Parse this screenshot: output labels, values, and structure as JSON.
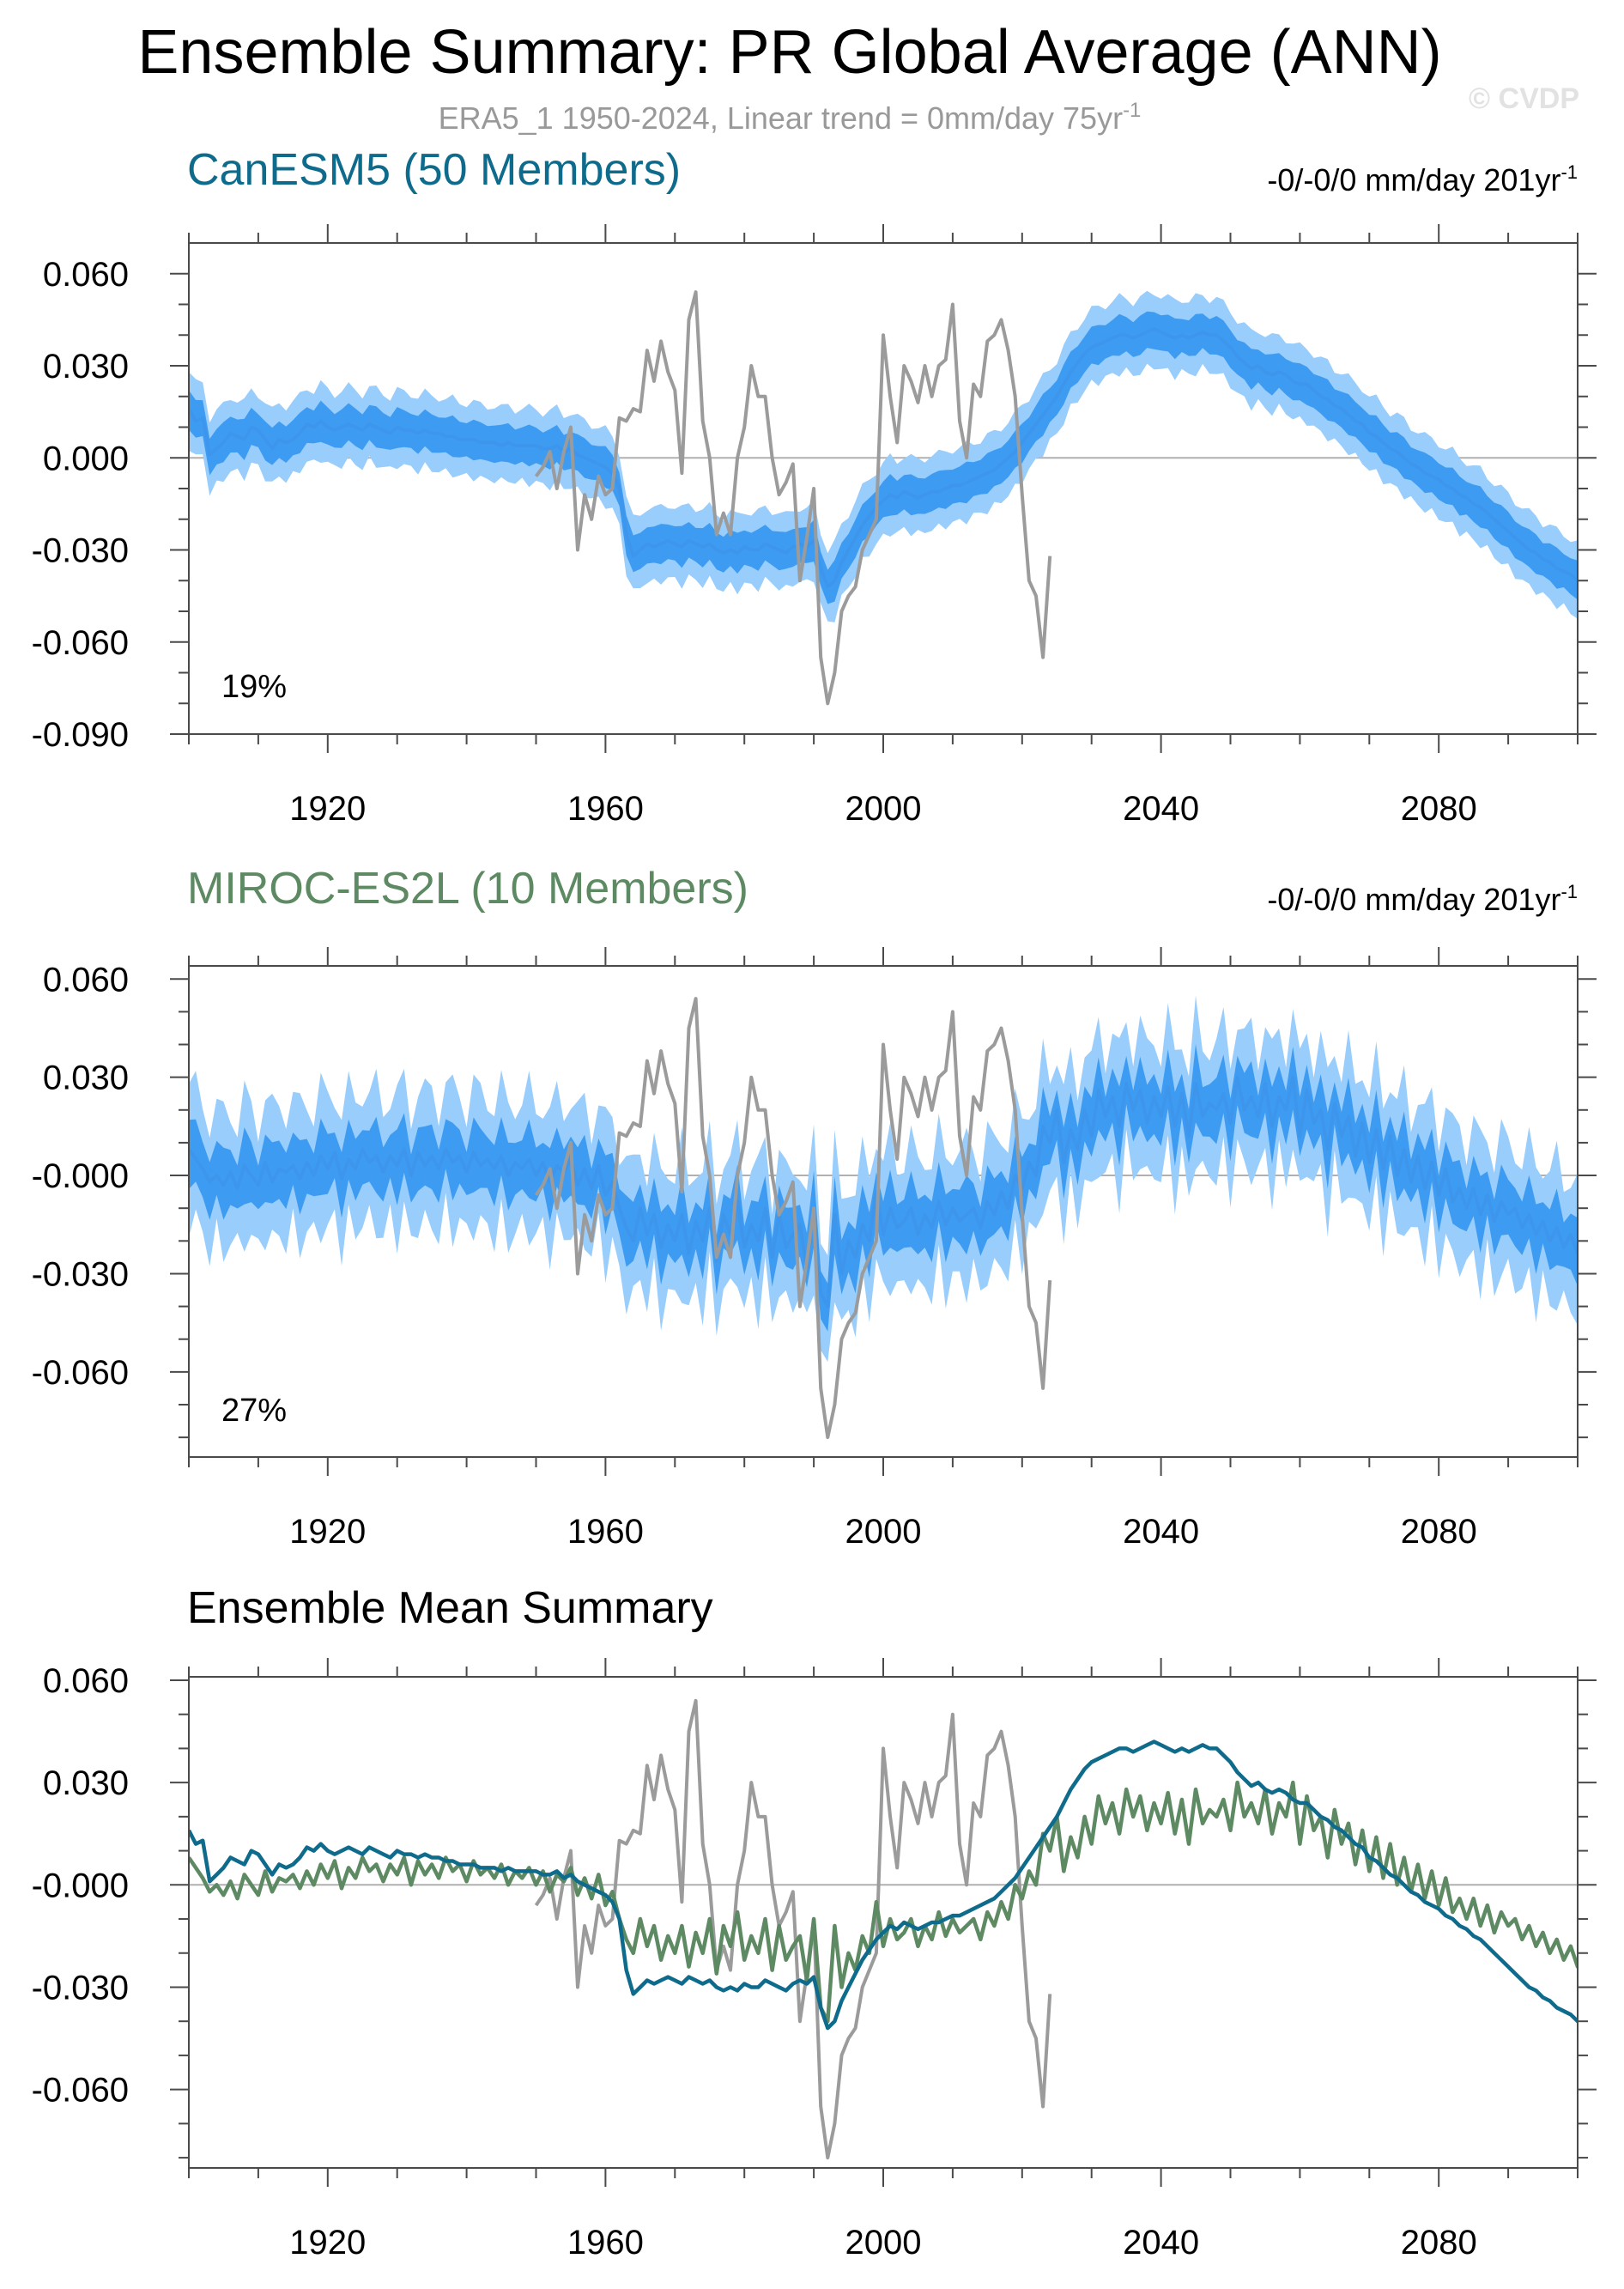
{
  "figure": {
    "title": "Ensemble Summary: PR Global Average (ANN)",
    "subtitle": "ERA5_1 1950-2024, Linear trend = 0mm/day 75yr",
    "subtitle_sup": "-1",
    "watermark": "© CVDP"
  },
  "colors": {
    "canesm5": "#0f6b8c",
    "miroc": "#5d8a63",
    "obs": "#9b9b9b",
    "mean": "#3d96ec",
    "band_inner": "#3d9cf2",
    "band_outer": "#99cdfc",
    "zero_line": "#b0b0b0",
    "frame": "#4a4a4a"
  },
  "chart_data": [
    {
      "type": "area",
      "title": "CanESM5 (50 Members)",
      "right_label": "-0/-0/0 mm/day 201yr",
      "right_label_sup": "-1",
      "pct_label": "19%",
      "xlim": [
        1900,
        2100
      ],
      "ylim": [
        -0.09,
        0.07
      ],
      "x_ticks": [
        1920,
        1960,
        2000,
        2040,
        2080
      ],
      "y_ticks": [
        0.06,
        0.03,
        0.0,
        -0.03,
        -0.06,
        -0.09
      ],
      "y_tick_labels": [
        "0.060",
        "0.030",
        "0.000",
        "-0.030",
        "-0.060",
        "-0.090"
      ],
      "x_start": 1900,
      "series": [
        {
          "role": "ensemble-mean",
          "values": [
            0.016,
            0.012,
            0.013,
            0.001,
            0.003,
            0.005,
            0.008,
            0.007,
            0.006,
            0.01,
            0.009,
            0.006,
            0.003,
            0.006,
            0.005,
            0.006,
            0.008,
            0.011,
            0.01,
            0.012,
            0.01,
            0.009,
            0.01,
            0.011,
            0.01,
            0.009,
            0.011,
            0.01,
            0.009,
            0.008,
            0.01,
            0.009,
            0.009,
            0.008,
            0.009,
            0.008,
            0.008,
            0.007,
            0.007,
            0.006,
            0.006,
            0.006,
            0.005,
            0.005,
            0.005,
            0.004,
            0.005,
            0.004,
            0.004,
            0.004,
            0.004,
            0.003,
            0.003,
            0.004,
            0.002,
            0.003,
            0.001,
            0.0,
            -0.001,
            -0.002,
            -0.003,
            -0.005,
            -0.01,
            -0.025,
            -0.032,
            -0.03,
            -0.028,
            -0.029,
            -0.028,
            -0.027,
            -0.028,
            -0.029,
            -0.027,
            -0.028,
            -0.029,
            -0.028,
            -0.03,
            -0.031,
            -0.03,
            -0.031,
            -0.029,
            -0.03,
            -0.03,
            -0.028,
            -0.029,
            -0.03,
            -0.031,
            -0.029,
            -0.028,
            -0.029,
            -0.027,
            -0.036,
            -0.042,
            -0.04,
            -0.034,
            -0.03,
            -0.026,
            -0.022,
            -0.019,
            -0.016,
            -0.014,
            -0.012,
            -0.013,
            -0.011,
            -0.012,
            -0.013,
            -0.012,
            -0.011,
            -0.011,
            -0.01,
            -0.009,
            -0.009,
            -0.008,
            -0.007,
            -0.006,
            -0.005,
            -0.004,
            -0.002,
            0.0,
            0.002,
            0.005,
            0.008,
            0.011,
            0.014,
            0.017,
            0.02,
            0.024,
            0.028,
            0.031,
            0.034,
            0.036,
            0.037,
            0.038,
            0.039,
            0.04,
            0.04,
            0.039,
            0.04,
            0.041,
            0.042,
            0.041,
            0.04,
            0.039,
            0.04,
            0.039,
            0.04,
            0.041,
            0.04,
            0.04,
            0.038,
            0.036,
            0.033,
            0.031,
            0.029,
            0.03,
            0.028,
            0.027,
            0.028,
            0.027,
            0.025,
            0.024,
            0.024,
            0.022,
            0.02,
            0.019,
            0.017,
            0.016,
            0.014,
            0.012,
            0.011,
            0.008,
            0.007,
            0.005,
            0.003,
            0.002,
            0.0,
            -0.002,
            -0.003,
            -0.005,
            -0.006,
            -0.007,
            -0.009,
            -0.01,
            -0.012,
            -0.013,
            -0.015,
            -0.016,
            -0.018,
            -0.02,
            -0.022,
            -0.024,
            -0.026,
            -0.028,
            -0.03,
            -0.031,
            -0.033,
            -0.034,
            -0.036,
            -0.037,
            -0.038,
            -0.04,
            -0.041,
            -0.043,
            -0.045,
            -0.047,
            -0.049
          ]
        },
        {
          "role": "spread-inner",
          "values": [
            0.006
          ]
        },
        {
          "role": "spread-outer",
          "values": [
            0.012
          ]
        },
        {
          "role": "observations",
          "x_start": 1950,
          "values": [
            -0.006,
            -0.003,
            0.002,
            -0.01,
            0.002,
            0.01,
            -0.03,
            -0.012,
            -0.02,
            -0.006,
            -0.012,
            -0.01,
            0.013,
            0.012,
            0.016,
            0.015,
            0.035,
            0.025,
            0.038,
            0.028,
            0.022,
            -0.005,
            0.045,
            0.054,
            0.012,
            0.0,
            -0.025,
            -0.018,
            -0.025,
            0.0,
            0.01,
            0.03,
            0.02,
            0.02,
            0.0,
            -0.012,
            -0.008,
            -0.002,
            -0.04,
            -0.026,
            -0.01,
            -0.065,
            -0.08,
            -0.07,
            -0.05,
            -0.045,
            -0.042,
            -0.03,
            -0.025,
            -0.02,
            0.04,
            0.02,
            0.005,
            0.03,
            0.025,
            0.018,
            0.03,
            0.02,
            0.03,
            0.032,
            0.05,
            0.012,
            0.0,
            0.024,
            0.02,
            0.038,
            0.04,
            0.045,
            0.035,
            0.02,
            -0.012,
            -0.04,
            -0.045,
            -0.065,
            -0.032
          ]
        }
      ]
    },
    {
      "type": "area",
      "title": "MIROC-ES2L (10 Members)",
      "right_label": "-0/-0/0 mm/day 201yr",
      "right_label_sup": "-1",
      "pct_label": "27%",
      "xlim": [
        1900,
        2100
      ],
      "ylim": [
        -0.086,
        0.064
      ],
      "x_ticks": [
        1920,
        1960,
        2000,
        2040,
        2080
      ],
      "y_ticks": [
        0.06,
        0.03,
        0.0,
        -0.03,
        -0.06
      ],
      "y_tick_labels": [
        "0.060",
        "0.030",
        "-0.000",
        "-0.030",
        "-0.060"
      ],
      "x_start": 1900,
      "series": [
        {
          "role": "ensemble-mean",
          "values": [
            0.008,
            0.005,
            0.002,
            -0.002,
            0.0,
            -0.003,
            0.001,
            -0.004,
            0.003,
            0.0,
            -0.003,
            0.004,
            -0.002,
            0.002,
            0.001,
            0.003,
            -0.001,
            0.004,
            0.0,
            0.006,
            0.002,
            0.007,
            -0.001,
            0.005,
            0.002,
            0.008,
            0.004,
            0.006,
            0.001,
            0.006,
            0.003,
            0.008,
            0.0,
            0.007,
            0.003,
            0.006,
            0.002,
            0.008,
            0.004,
            0.006,
            0.001,
            0.007,
            0.003,
            0.005,
            0.002,
            0.006,
            0.0,
            0.004,
            0.002,
            0.005,
            0.0,
            0.004,
            -0.002,
            0.003,
            0.001,
            0.005,
            -0.003,
            0.002,
            -0.004,
            0.003,
            -0.006,
            -0.002,
            -0.01,
            -0.016,
            -0.02,
            -0.01,
            -0.018,
            -0.012,
            -0.022,
            -0.015,
            -0.02,
            -0.012,
            -0.024,
            -0.014,
            -0.02,
            -0.01,
            -0.026,
            -0.012,
            -0.018,
            -0.008,
            -0.022,
            -0.015,
            -0.02,
            -0.01,
            -0.025,
            -0.012,
            -0.022,
            -0.018,
            -0.015,
            -0.028,
            -0.01,
            -0.036,
            -0.04,
            -0.012,
            -0.03,
            -0.02,
            -0.025,
            -0.015,
            -0.02,
            -0.005,
            -0.018,
            -0.01,
            -0.016,
            -0.014,
            -0.01,
            -0.018,
            -0.012,
            -0.016,
            -0.008,
            -0.015,
            -0.01,
            -0.014,
            -0.012,
            -0.01,
            -0.016,
            -0.008,
            -0.012,
            -0.005,
            -0.01,
            0.0,
            -0.004,
            0.004,
            0.0,
            0.015,
            0.01,
            0.02,
            0.004,
            0.014,
            0.008,
            0.02,
            0.012,
            0.026,
            0.018,
            0.024,
            0.015,
            0.028,
            0.02,
            0.026,
            0.016,
            0.024,
            0.018,
            0.027,
            0.015,
            0.025,
            0.012,
            0.028,
            0.018,
            0.022,
            0.02,
            0.025,
            0.016,
            0.03,
            0.02,
            0.024,
            0.018,
            0.028,
            0.015,
            0.024,
            0.02,
            0.03,
            0.012,
            0.026,
            0.016,
            0.02,
            0.008,
            0.022,
            0.012,
            0.018,
            0.006,
            0.016,
            0.004,
            0.014,
            0.002,
            0.012,
            0.0,
            0.008,
            -0.002,
            0.006,
            -0.004,
            0.004,
            -0.006,
            0.002,
            -0.008,
            -0.004,
            -0.01,
            -0.004,
            -0.012,
            -0.006,
            -0.014,
            -0.008,
            -0.012,
            -0.01,
            -0.016,
            -0.012,
            -0.018,
            -0.014,
            -0.02,
            -0.016,
            -0.022,
            -0.018,
            -0.024,
            -0.02,
            -0.026,
            -0.022,
            -0.028,
            -0.024
          ]
        },
        {
          "role": "spread-inner",
          "values": [
            0.009
          ]
        },
        {
          "role": "spread-outer",
          "values": [
            0.02
          ]
        },
        {
          "role": "observations",
          "x_start": 1950,
          "values": [
            -0.006,
            -0.003,
            0.002,
            -0.01,
            0.002,
            0.01,
            -0.03,
            -0.012,
            -0.02,
            -0.006,
            -0.012,
            -0.01,
            0.013,
            0.012,
            0.016,
            0.015,
            0.035,
            0.025,
            0.038,
            0.028,
            0.022,
            -0.005,
            0.045,
            0.054,
            0.012,
            0.0,
            -0.025,
            -0.018,
            -0.025,
            0.0,
            0.01,
            0.03,
            0.02,
            0.02,
            0.0,
            -0.012,
            -0.008,
            -0.002,
            -0.04,
            -0.026,
            -0.01,
            -0.065,
            -0.08,
            -0.07,
            -0.05,
            -0.045,
            -0.042,
            -0.03,
            -0.025,
            -0.02,
            0.04,
            0.02,
            0.005,
            0.03,
            0.025,
            0.018,
            0.03,
            0.02,
            0.03,
            0.032,
            0.05,
            0.012,
            0.0,
            0.024,
            0.02,
            0.038,
            0.04,
            0.045,
            0.035,
            0.02,
            -0.012,
            -0.04,
            -0.045,
            -0.065,
            -0.032
          ]
        }
      ]
    },
    {
      "type": "line",
      "title": "Ensemble Mean Summary",
      "xlim": [
        1900,
        2100
      ],
      "ylim": [
        -0.083,
        0.061
      ],
      "x_ticks": [
        1920,
        1960,
        2000,
        2040,
        2080
      ],
      "y_ticks": [
        0.06,
        0.03,
        0.0,
        -0.03,
        -0.06
      ],
      "y_tick_labels": [
        "0.060",
        "0.030",
        "-0.000",
        "-0.030",
        "-0.060"
      ],
      "series": [
        {
          "role": "canesm5-mean",
          "ref": 0
        },
        {
          "role": "miroc-mean",
          "ref": 1
        },
        {
          "role": "observations",
          "ref": 0
        }
      ]
    }
  ]
}
